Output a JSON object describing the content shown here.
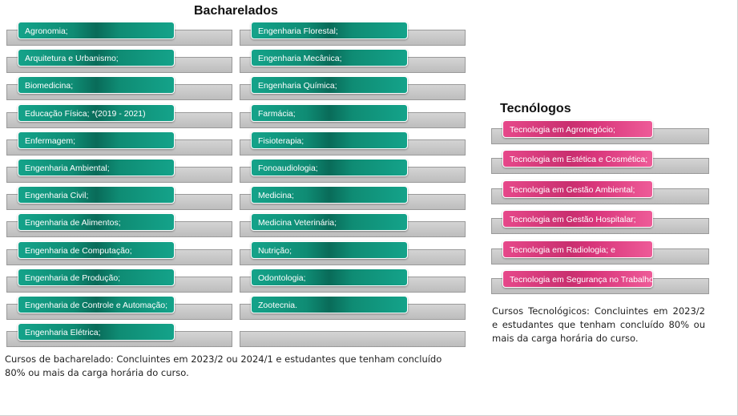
{
  "bacharelados": {
    "title": "Bacharelados",
    "col1": [
      "Agronomia;",
      "Arquitetura e Urbanismo;",
      "Biomedicina;",
      "Educação Física;  *(2019 - 2021)",
      "Enfermagem;",
      "Engenharia Ambiental;",
      "Engenharia Civil;",
      "Engenharia de Alimentos;",
      "Engenharia de Computação;",
      "Engenharia de Produção;",
      "Engenharia de Controle e Automação;",
      "Engenharia Elétrica;"
    ],
    "col2": [
      "Engenharia Florestal;",
      "Engenharia Mecânica;",
      "Engenharia Química;",
      "Farmácia;",
      "Fisioterapia;",
      "Fonoaudiologia;",
      "Medicina;",
      "Medicina Veterinária;",
      "Nutrição;",
      "Odontologia;",
      "Zootecnia."
    ],
    "note": "Cursos de bacharelado: Concluintes em 2023/2 ou 2024/1 e estudantes que tenham concluído 80% ou mais da carga horária do curso."
  },
  "tecnologos": {
    "title": "Tecnólogos",
    "items": [
      "Tecnologia em Agronegócio;",
      "Tecnologia em Estética e Cosmética;",
      "Tecnologia em Gestão Ambiental;",
      "Tecnologia em Gestão Hospitalar;",
      "Tecnologia em Radiologia; e",
      "Tecnologia em Segurança no Trabalho."
    ],
    "note": "Cursos Tecnológicos: Concluintes em 2023/2 e estudantes que tenham concluído 80% ou mais da carga horária do curso."
  },
  "colors": {
    "green": "#0f8c74",
    "pink": "#d8357a",
    "bar": "#c8c8c8"
  }
}
